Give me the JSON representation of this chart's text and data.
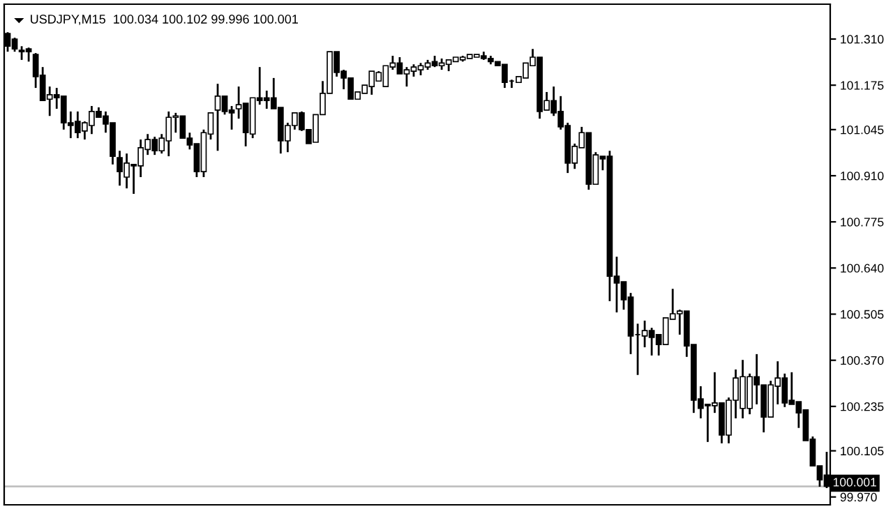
{
  "chart_data": {
    "type": "candlestick",
    "title": "USDJPY,M15  100.034 100.102 99.996 100.001",
    "color": "#000000",
    "categories": [
      null,
      null,
      null,
      null,
      null,
      null,
      null,
      null,
      null,
      null,
      null,
      null,
      null,
      null,
      null,
      null,
      null,
      null,
      null,
      null,
      null,
      null,
      null,
      null,
      null,
      null,
      null,
      null,
      null,
      null,
      null,
      null,
      null,
      null,
      null,
      null,
      null,
      null,
      null,
      null,
      null,
      null,
      null,
      null,
      null,
      null,
      null,
      null,
      null,
      null,
      null,
      null,
      null,
      null,
      null,
      null,
      null,
      null,
      null,
      null,
      null,
      null,
      null,
      null,
      null,
      null,
      null,
      null,
      null,
      null,
      null,
      null,
      null,
      null,
      null,
      null,
      null,
      null,
      null,
      null,
      null,
      null,
      null,
      null,
      null,
      null,
      null,
      null,
      null,
      null,
      null,
      null,
      null,
      null,
      null,
      null,
      null,
      null,
      null,
      null,
      null,
      null,
      null,
      null,
      null,
      null,
      null,
      null,
      null,
      null,
      null,
      null,
      null,
      null,
      null,
      null,
      null,
      null
    ],
    "ohlc": [
      [
        101.326,
        101.33,
        101.273,
        101.289
      ],
      [
        101.31,
        101.314,
        101.273,
        101.281
      ],
      [
        101.277,
        101.289,
        101.249,
        101.273
      ],
      [
        101.281,
        101.285,
        101.244,
        101.273
      ],
      [
        101.265,
        101.269,
        101.167,
        101.2
      ],
      [
        101.204,
        101.228,
        101.13,
        101.13
      ],
      [
        101.134,
        101.171,
        101.085,
        101.147
      ],
      [
        101.147,
        101.167,
        101.106,
        101.138
      ],
      [
        101.143,
        101.143,
        101.045,
        101.065
      ],
      [
        101.065,
        101.098,
        101.02,
        101.057
      ],
      [
        101.069,
        101.098,
        101.02,
        101.036
      ],
      [
        101.041,
        101.069,
        101.016,
        101.065
      ],
      [
        101.057,
        101.114,
        101.032,
        101.098
      ],
      [
        101.098,
        101.11,
        101.081,
        101.081
      ],
      [
        101.085,
        101.098,
        101.036,
        101.061
      ],
      [
        101.065,
        101.065,
        100.943,
        100.967
      ],
      [
        100.963,
        100.983,
        100.881,
        100.922
      ],
      [
        100.906,
        100.975,
        100.873,
        100.947
      ],
      [
        100.943,
        100.943,
        100.857,
        100.939
      ],
      [
        100.939,
        101.016,
        100.906,
        100.992
      ],
      [
        100.987,
        101.032,
        100.971,
        101.016
      ],
      [
        101.016,
        101.024,
        100.971,
        100.983
      ],
      [
        100.983,
        101.032,
        100.975,
        101.02
      ],
      [
        101.012,
        101.098,
        100.967,
        101.081
      ],
      [
        101.081,
        101.094,
        101.036,
        101.085
      ],
      [
        101.085,
        101.085,
        101.02,
        101.02
      ],
      [
        101.02,
        101.036,
        100.987,
        101.0
      ],
      [
        101.004,
        101.004,
        100.906,
        100.922
      ],
      [
        100.922,
        101.045,
        100.906,
        101.036
      ],
      [
        101.032,
        101.094,
        101.016,
        101.094
      ],
      [
        101.102,
        101.179,
        100.983,
        101.143
      ],
      [
        101.143,
        101.143,
        101.089,
        101.098
      ],
      [
        101.102,
        101.114,
        101.045,
        101.094
      ],
      [
        101.106,
        101.171,
        101.077,
        101.118
      ],
      [
        101.122,
        101.122,
        100.996,
        101.036
      ],
      [
        101.032,
        101.138,
        101.02,
        101.138
      ],
      [
        101.138,
        101.228,
        101.118,
        101.13
      ],
      [
        101.138,
        101.159,
        101.106,
        101.13
      ],
      [
        101.138,
        101.196,
        101.106,
        101.106
      ],
      [
        101.11,
        101.11,
        100.975,
        101.012
      ],
      [
        101.012,
        101.065,
        100.979,
        101.057
      ],
      [
        101.057,
        101.094,
        101.045,
        101.094
      ],
      [
        101.094,
        101.098,
        101.041,
        101.045
      ],
      [
        101.045,
        101.045,
        101.004,
        101.004
      ],
      [
        101.008,
        101.089,
        101.008,
        101.089
      ],
      [
        101.089,
        101.187,
        101.089,
        101.151
      ],
      [
        101.151,
        101.273,
        101.151,
        101.273
      ],
      [
        101.273,
        101.273,
        101.2,
        101.212
      ],
      [
        101.216,
        101.22,
        101.163,
        101.196
      ],
      [
        101.196,
        101.196,
        101.134,
        101.134
      ],
      [
        101.134,
        101.155,
        101.134,
        101.155
      ],
      [
        101.151,
        101.175,
        101.151,
        101.175
      ],
      [
        101.171,
        101.216,
        101.147,
        101.216
      ],
      [
        101.187,
        101.216,
        101.187,
        101.212
      ],
      [
        101.171,
        101.232,
        101.171,
        101.232
      ],
      [
        101.228,
        101.261,
        101.22,
        101.24
      ],
      [
        101.24,
        101.257,
        101.208,
        101.208
      ],
      [
        101.208,
        101.228,
        101.171,
        101.22
      ],
      [
        101.216,
        101.236,
        101.2,
        101.228
      ],
      [
        101.22,
        101.24,
        101.204,
        101.232
      ],
      [
        101.228,
        101.249,
        101.22,
        101.24
      ],
      [
        101.244,
        101.261,
        101.228,
        101.232
      ],
      [
        101.232,
        101.253,
        101.22,
        101.24
      ],
      [
        101.236,
        101.249,
        101.216,
        101.249
      ],
      [
        101.244,
        101.257,
        101.244,
        101.257
      ],
      [
        101.249,
        101.261,
        101.244,
        101.257
      ],
      [
        101.253,
        101.265,
        101.253,
        101.265
      ],
      [
        101.257,
        101.265,
        101.257,
        101.265
      ],
      [
        101.261,
        101.273,
        101.249,
        101.253
      ],
      [
        101.253,
        101.261,
        101.236,
        101.244
      ],
      [
        101.244,
        101.244,
        101.232,
        101.232
      ],
      [
        101.236,
        101.236,
        101.167,
        101.183
      ],
      [
        101.187,
        101.191,
        101.167,
        101.187
      ],
      [
        101.183,
        101.2,
        101.183,
        101.2
      ],
      [
        101.196,
        101.24,
        101.196,
        101.24
      ],
      [
        101.232,
        101.281,
        101.232,
        101.257
      ],
      [
        101.257,
        101.257,
        101.077,
        101.098
      ],
      [
        101.102,
        101.155,
        101.102,
        101.13
      ],
      [
        101.13,
        101.171,
        101.085,
        101.094
      ],
      [
        101.098,
        101.143,
        101.045,
        101.053
      ],
      [
        101.057,
        101.065,
        100.918,
        100.947
      ],
      [
        100.947,
        101.004,
        100.93,
        100.996
      ],
      [
        100.992,
        101.053,
        100.992,
        101.036
      ],
      [
        101.036,
        101.036,
        100.869,
        100.885
      ],
      [
        100.885,
        100.979,
        100.885,
        100.971
      ],
      [
        100.967,
        100.967,
        100.926,
        100.959
      ],
      [
        100.967,
        100.983,
        100.543,
        100.616
      ],
      [
        100.616,
        100.673,
        100.51,
        100.596
      ],
      [
        100.6,
        100.6,
        100.518,
        100.547
      ],
      [
        100.555,
        100.567,
        100.388,
        100.441
      ],
      [
        100.445,
        100.477,
        100.327,
        100.445
      ],
      [
        100.441,
        100.486,
        100.408,
        100.457
      ],
      [
        100.457,
        100.465,
        100.384,
        100.437
      ],
      [
        100.445,
        100.445,
        100.384,
        100.416
      ],
      [
        100.416,
        100.494,
        100.416,
        100.494
      ],
      [
        100.49,
        100.579,
        100.49,
        100.506
      ],
      [
        100.506,
        100.518,
        100.445,
        100.514
      ],
      [
        100.514,
        100.514,
        100.38,
        100.412
      ],
      [
        100.416,
        100.416,
        100.216,
        100.253
      ],
      [
        100.257,
        100.294,
        100.2,
        100.229
      ],
      [
        100.241,
        100.241,
        100.131,
        100.237
      ],
      [
        100.237,
        100.335,
        100.216,
        100.245
      ],
      [
        100.245,
        100.245,
        100.127,
        100.151
      ],
      [
        100.151,
        100.261,
        100.127,
        100.253
      ],
      [
        100.253,
        100.343,
        100.2,
        100.318
      ],
      [
        100.229,
        100.371,
        100.2,
        100.322
      ],
      [
        100.229,
        100.331,
        100.212,
        100.322
      ],
      [
        100.322,
        100.388,
        100.241,
        100.298
      ],
      [
        100.298,
        100.298,
        100.159,
        100.204
      ],
      [
        100.204,
        100.31,
        100.204,
        100.298
      ],
      [
        100.294,
        100.367,
        100.241,
        100.318
      ],
      [
        100.318,
        100.331,
        100.233,
        100.245
      ],
      [
        100.253,
        100.335,
        100.241,
        100.241
      ],
      [
        100.249,
        100.249,
        100.172,
        100.216
      ],
      [
        100.225,
        100.225,
        100.135,
        100.135
      ],
      [
        100.139,
        100.147,
        100.061,
        100.061
      ],
      [
        100.061,
        100.061,
        100.0,
        100.02
      ],
      [
        100.034,
        100.102,
        99.996,
        100.001
      ]
    ],
    "ylim": [
      99.947,
      101.412
    ],
    "yticks": [
      {
        "value": 101.31,
        "label": "101.310"
      },
      {
        "value": 101.175,
        "label": "101.175"
      },
      {
        "value": 101.045,
        "label": "101.045"
      },
      {
        "value": 100.91,
        "label": "100.910"
      },
      {
        "value": 100.775,
        "label": "100.775"
      },
      {
        "value": 100.64,
        "label": "100.640"
      },
      {
        "value": 100.505,
        "label": "100.505"
      },
      {
        "value": 100.37,
        "label": "100.370"
      },
      {
        "value": 100.235,
        "label": "100.235"
      },
      {
        "value": 100.105,
        "label": "100.105"
      },
      {
        "value": 99.97,
        "label": "99.970"
      }
    ],
    "ref_lines": [
      {
        "axis": "y",
        "value": 100.001,
        "label": "100.001",
        "color": "#c0c0c0"
      }
    ],
    "tick_labels": "y",
    "grid": false
  }
}
